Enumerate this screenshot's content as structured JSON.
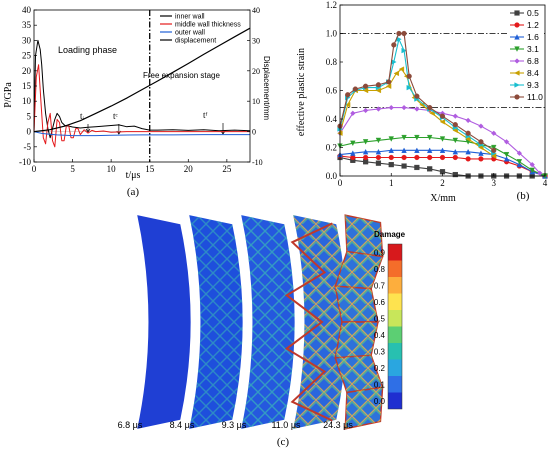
{
  "figure": {
    "panel_labels": [
      "(a)",
      "(b)",
      "(c)"
    ]
  },
  "chart_data": [
    {
      "id": "a",
      "type": "line",
      "xlabel": "t/μs",
      "ylabel": "P/GPa",
      "y2label": "Displacement/mm",
      "xlim": [
        0,
        28
      ],
      "ylim": [
        -10,
        40
      ],
      "y2lim": [
        -10,
        40
      ],
      "xticks": [
        0,
        5,
        10,
        15,
        20,
        25
      ],
      "yticks": [
        -10,
        -5,
        0,
        5,
        10,
        15,
        20,
        25,
        30,
        35,
        40
      ],
      "y2ticks": [
        -10,
        0,
        10,
        20,
        30,
        40
      ],
      "legend": "top-right",
      "annotations": {
        "loading_phase": "Loading phase",
        "free_expansion": "Free expansion stage",
        "ti": "tᵢ",
        "tc": "tᶜ",
        "tf": "tᶠ"
      },
      "phase_boundary_x": 15,
      "series": [
        {
          "name": "inner wall",
          "color": "#000000",
          "x": [
            0,
            0.2,
            0.5,
            0.8,
            1.0,
            1.2,
            1.5,
            1.8,
            2.1,
            2.4,
            2.7,
            3.0,
            3.3,
            3.6,
            4.0,
            4.5,
            5,
            6,
            7,
            8,
            9,
            10,
            11,
            12,
            13,
            14,
            15,
            16,
            18,
            20,
            22,
            24,
            26,
            28
          ],
          "y": [
            0,
            25,
            30,
            27,
            22,
            14,
            6,
            1,
            -2,
            1,
            4,
            6,
            5,
            3,
            2,
            1.8,
            1.5,
            1.2,
            1.4,
            1.6,
            1.8,
            2.0,
            2.2,
            1.6,
            1.8,
            1.0,
            0.5,
            0.5,
            0.6,
            0.4,
            0.6,
            0.3,
            0.5,
            0.3
          ]
        },
        {
          "name": "middle wall thickness",
          "color": "#e41a1c",
          "x": [
            0,
            0.3,
            0.6,
            0.9,
            1.2,
            1.5,
            1.8,
            2.1,
            2.4,
            2.7,
            3.0,
            3.3,
            3.6,
            3.9,
            4.2,
            4.5,
            4.8,
            5.1,
            5.4,
            5.7,
            6.0,
            6.5,
            7.0,
            7.5,
            8,
            9,
            10,
            12,
            15,
            20,
            28
          ],
          "y": [
            0,
            18,
            22,
            10,
            -2,
            -4,
            3,
            6,
            -3,
            -5,
            4,
            3,
            -3,
            -3,
            2,
            2,
            -2,
            -2,
            1,
            1,
            -1,
            0.6,
            -0.5,
            0.4,
            0,
            0.2,
            -0.2,
            0,
            0,
            0,
            0
          ]
        },
        {
          "name": "outer wall",
          "color": "#1f5fd6",
          "x": [
            0,
            1,
            2,
            3,
            5,
            8,
            10,
            14,
            18,
            22,
            28
          ],
          "y": [
            0,
            -0.6,
            -0.9,
            -1.1,
            -1.3,
            -1.3,
            -1.2,
            -1.1,
            -1.1,
            -1.0,
            -1.0
          ]
        },
        {
          "name": "displacement",
          "color": "#000000",
          "axis": "right",
          "x": [
            0,
            2,
            4,
            6,
            8,
            10,
            12,
            14,
            16,
            18,
            20,
            22,
            24,
            26,
            28
          ],
          "y": [
            0,
            0.6,
            1.8,
            3.6,
            6.0,
            8.4,
            11.0,
            13.8,
            16.6,
            19.5,
            22.4,
            25.4,
            28.3,
            31.2,
            34.0
          ]
        }
      ]
    },
    {
      "id": "b",
      "type": "line",
      "xlabel": "X/mm",
      "ylabel": "effective plastic strain",
      "xlim": [
        0,
        4
      ],
      "ylim": [
        0,
        1.2
      ],
      "xticks": [
        0,
        1,
        2,
        3,
        4
      ],
      "yticks": [
        0.0,
        0.2,
        0.4,
        0.6,
        0.8,
        1.0,
        1.2
      ],
      "reference_lines_y": [
        1.0,
        0.48
      ],
      "legend": "top-right",
      "series": [
        {
          "name": "0.5",
          "color": "#404040",
          "marker": "square",
          "x": [
            0,
            0.25,
            0.5,
            0.75,
            1.0,
            1.25,
            1.5,
            1.75,
            2.0,
            2.25,
            2.5,
            2.75,
            3.0,
            3.25,
            3.5,
            3.75,
            4.0
          ],
          "y": [
            0.13,
            0.11,
            0.1,
            0.09,
            0.08,
            0.07,
            0.06,
            0.05,
            0.03,
            0.01,
            0.0,
            0.0,
            0.0,
            0.0,
            0.0,
            0.0,
            0.0
          ]
        },
        {
          "name": "1.2",
          "color": "#e41a1c",
          "marker": "circle",
          "x": [
            0,
            0.25,
            0.5,
            0.75,
            1.0,
            1.25,
            1.5,
            1.75,
            2.0,
            2.25,
            2.5,
            2.75,
            3.0,
            3.25,
            3.5,
            3.75,
            4.0
          ],
          "y": [
            0.14,
            0.13,
            0.13,
            0.13,
            0.13,
            0.13,
            0.13,
            0.13,
            0.13,
            0.13,
            0.12,
            0.12,
            0.12,
            0.1,
            0.07,
            0.03,
            0.0
          ]
        },
        {
          "name": "1.6",
          "color": "#1f5fd6",
          "marker": "triangle-up",
          "x": [
            0,
            0.25,
            0.5,
            0.75,
            1.0,
            1.25,
            1.5,
            1.75,
            2.0,
            2.25,
            2.5,
            2.75,
            3.0,
            3.25,
            3.5,
            3.75,
            4.0
          ],
          "y": [
            0.15,
            0.16,
            0.17,
            0.17,
            0.18,
            0.18,
            0.18,
            0.18,
            0.18,
            0.17,
            0.17,
            0.16,
            0.15,
            0.12,
            0.08,
            0.03,
            0.0
          ]
        },
        {
          "name": "3.1",
          "color": "#2ca02c",
          "marker": "triangle-down",
          "x": [
            0,
            0.25,
            0.5,
            0.75,
            1.0,
            1.25,
            1.5,
            1.75,
            2.0,
            2.25,
            2.5,
            2.75,
            3.0,
            3.25,
            3.5,
            3.75,
            4.0
          ],
          "y": [
            0.21,
            0.23,
            0.24,
            0.25,
            0.26,
            0.27,
            0.27,
            0.27,
            0.26,
            0.25,
            0.24,
            0.22,
            0.2,
            0.15,
            0.1,
            0.04,
            0.0
          ]
        },
        {
          "name": "6.8",
          "color": "#b05de0",
          "marker": "diamond",
          "x": [
            0,
            0.25,
            0.5,
            0.75,
            1.0,
            1.25,
            1.5,
            1.75,
            2.0,
            2.25,
            2.5,
            2.75,
            3.0,
            3.25,
            3.5,
            3.75,
            3.9
          ],
          "y": [
            0.3,
            0.44,
            0.46,
            0.47,
            0.48,
            0.48,
            0.47,
            0.46,
            0.44,
            0.42,
            0.39,
            0.35,
            0.3,
            0.24,
            0.16,
            0.08,
            0.02
          ]
        },
        {
          "name": "8.4",
          "color": "#c8a000",
          "marker": "triangle-left",
          "x": [
            0,
            0.15,
            0.3,
            0.5,
            0.75,
            0.95,
            1.1,
            1.2,
            1.3,
            1.45,
            1.6,
            1.8,
            2.0,
            2.25,
            2.5,
            2.75,
            3.0
          ],
          "y": [
            0.3,
            0.5,
            0.6,
            0.6,
            0.6,
            0.63,
            0.72,
            0.75,
            0.7,
            0.55,
            0.5,
            0.44,
            0.38,
            0.32,
            0.26,
            0.2,
            0.14
          ]
        },
        {
          "name": "9.3",
          "color": "#17becf",
          "marker": "triangle-right",
          "x": [
            0,
            0.15,
            0.3,
            0.5,
            0.75,
            0.95,
            1.05,
            1.15,
            1.25,
            1.35,
            1.5,
            1.75,
            2.0,
            2.25,
            2.5,
            2.75,
            3.0
          ],
          "y": [
            0.33,
            0.55,
            0.6,
            0.62,
            0.62,
            0.66,
            0.8,
            0.96,
            0.88,
            0.62,
            0.54,
            0.47,
            0.41,
            0.34,
            0.28,
            0.22,
            0.16
          ]
        },
        {
          "name": "11.0",
          "color": "#8c4a3a",
          "marker": "circle",
          "x": [
            0,
            0.15,
            0.3,
            0.5,
            0.75,
            0.95,
            1.05,
            1.15,
            1.25,
            1.35,
            1.5,
            1.75,
            2.0,
            2.25,
            2.5,
            2.75,
            3.0
          ],
          "y": [
            0.35,
            0.57,
            0.61,
            0.63,
            0.64,
            0.66,
            0.92,
            1.0,
            1.0,
            0.7,
            0.56,
            0.48,
            0.42,
            0.36,
            0.3,
            0.24,
            0.18
          ]
        }
      ]
    },
    {
      "id": "c",
      "type": "heatmap",
      "colorbar_title": "Damage",
      "colorbar_ticks": [
        "0.9",
        "0.8",
        "0.7",
        "0.6",
        "0.5",
        "0.4",
        "0.3",
        "0.2",
        "0.1",
        "0.0"
      ],
      "colorbar_colors": [
        "#d7191c",
        "#f46d2a",
        "#fdae3d",
        "#fee34f",
        "#c8e65a",
        "#5ccf73",
        "#28c0b0",
        "#2aa6e0",
        "#2f6fe6",
        "#1f2fd0"
      ],
      "snapshots": [
        {
          "time": "6.8 μs",
          "damage": "low"
        },
        {
          "time": "8.4 μs",
          "damage": "medium"
        },
        {
          "time": "9.3 μs",
          "damage": "high"
        },
        {
          "time": "11.0 μs",
          "damage": "very-high"
        },
        {
          "time": "24.3 μs",
          "damage": "fractured"
        }
      ]
    }
  ]
}
